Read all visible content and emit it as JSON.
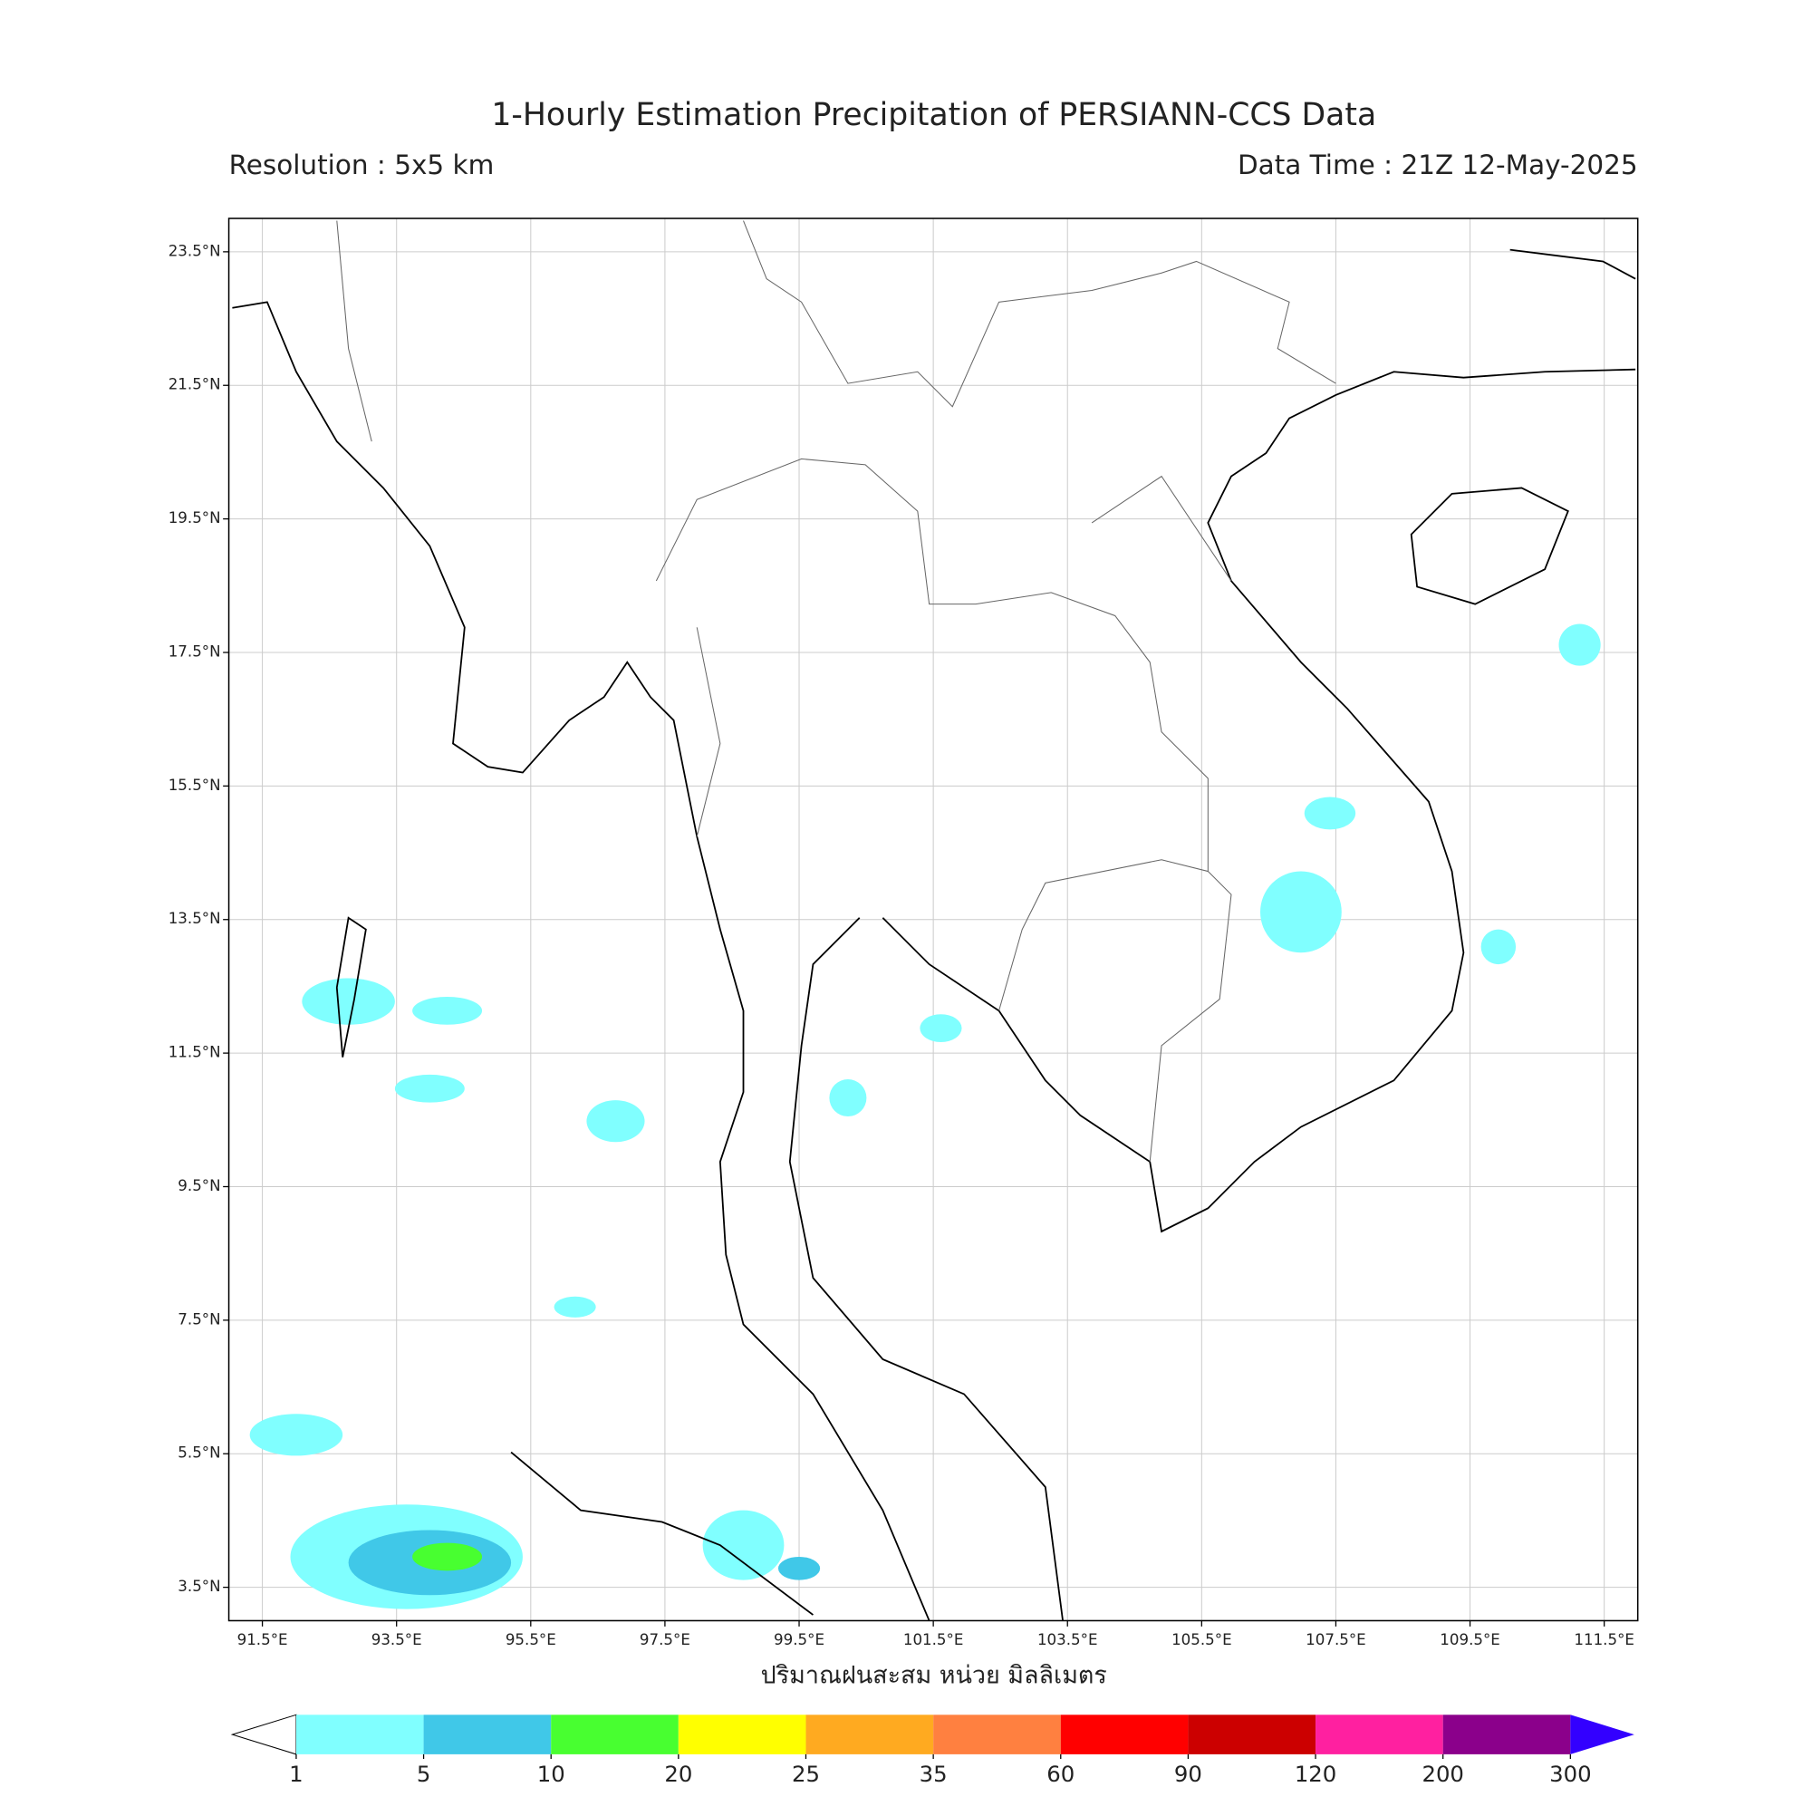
{
  "header": {
    "title": "1-Hourly Estimation Precipitation of PERSIANN-CCS Data",
    "resolution": "Resolution : 5x5 km",
    "data_time": "Data Time : 21Z 12-May-2025"
  },
  "map": {
    "xlim": [
      91,
      112
    ],
    "ylim": [
      3,
      24
    ],
    "xticks": [
      {
        "value": 91.5,
        "label": "91.5°E"
      },
      {
        "value": 93.5,
        "label": "93.5°E"
      },
      {
        "value": 95.5,
        "label": "95.5°E"
      },
      {
        "value": 97.5,
        "label": "97.5°E"
      },
      {
        "value": 99.5,
        "label": "99.5°E"
      },
      {
        "value": 101.5,
        "label": "101.5°E"
      },
      {
        "value": 103.5,
        "label": "103.5°E"
      },
      {
        "value": 105.5,
        "label": "105.5°E"
      },
      {
        "value": 107.5,
        "label": "107.5°E"
      },
      {
        "value": 109.5,
        "label": "109.5°E"
      },
      {
        "value": 111.5,
        "label": "111.5°E"
      }
    ],
    "yticks": [
      {
        "value": 3.5,
        "label": "3.5°N"
      },
      {
        "value": 5.5,
        "label": "5.5°N"
      },
      {
        "value": 7.5,
        "label": "7.5°N"
      },
      {
        "value": 9.5,
        "label": "9.5°N"
      },
      {
        "value": 11.5,
        "label": "11.5°N"
      },
      {
        "value": 13.5,
        "label": "13.5°N"
      },
      {
        "value": 15.5,
        "label": "15.5°N"
      },
      {
        "value": 17.5,
        "label": "17.5°N"
      },
      {
        "value": 19.5,
        "label": "19.5°N"
      },
      {
        "value": 21.5,
        "label": "21.5°N"
      },
      {
        "value": 23.5,
        "label": "23.5°N"
      }
    ],
    "grid": true,
    "xlabel": "ปริมาณฝนสะสม หน่วย มิลลิเมตร"
  },
  "colorbar": {
    "levels": [
      1,
      5,
      10,
      20,
      25,
      35,
      60,
      90,
      120,
      200,
      300
    ],
    "colors": [
      "#80ffff",
      "#40c8e8",
      "#48ff30",
      "#ffff00",
      "#ffaa20",
      "#ff8040",
      "#ff0000",
      "#cc0000",
      "#ff20a0",
      "#8b008b"
    ],
    "under_color": "#ffffff",
    "over_color": "#3300ff"
  }
}
